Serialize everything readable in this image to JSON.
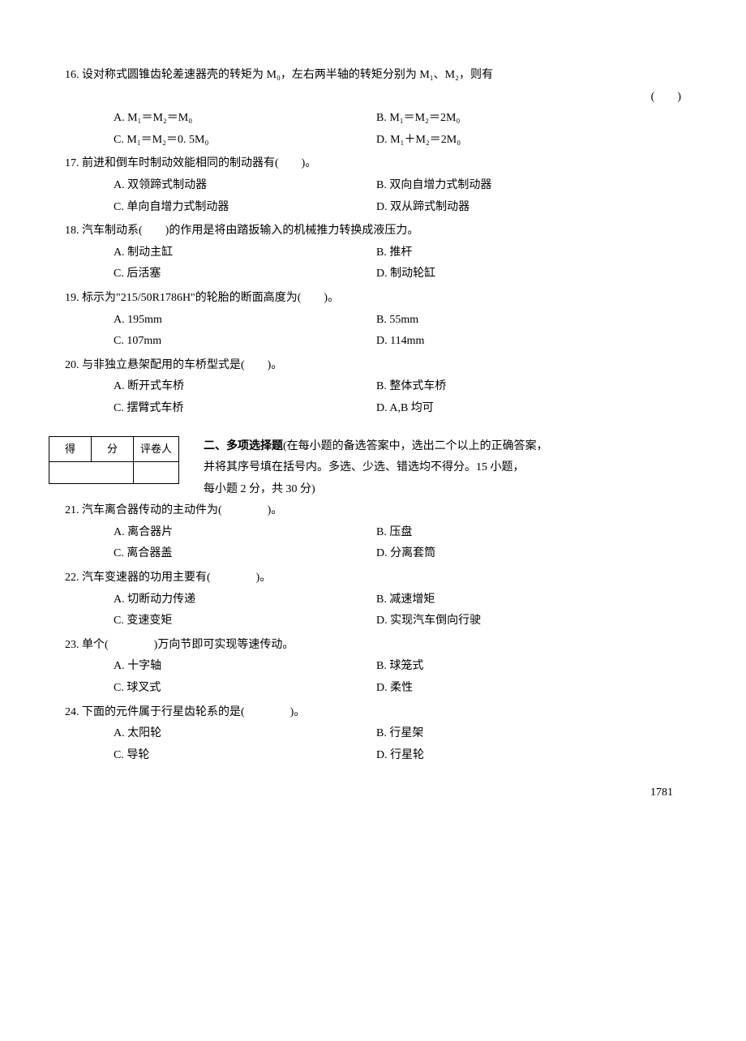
{
  "q16": {
    "num": "16.",
    "text": "设对称式圆锥齿轮差速器壳的转矩为 M₀，左右两半轴的转矩分别为 M₁、M₂，则有",
    "paren": "(　　)",
    "optA": "A.  M₁＝M₂＝M₀",
    "optB": "B.  M₁＝M₂＝2M₀",
    "optC": "C.  M₁＝M₂＝0. 5M₀",
    "optD": "D.  M₁＋M₂＝2M₀"
  },
  "q17": {
    "num": "17.",
    "text": "前进和倒车时制动效能相同的制动器有(　　)。",
    "optA": "A. 双领蹄式制动器",
    "optB": "B. 双向自增力式制动器",
    "optC": "C. 单向自增力式制动器",
    "optD": "D. 双从蹄式制动器"
  },
  "q18": {
    "num": "18.",
    "text": "汽车制动系(　　)的作用是将由踏扳输入的机械推力转换成液压力。",
    "optA": "A. 制动主缸",
    "optB": "B. 推杆",
    "optC": "C. 后活塞",
    "optD": "D. 制动轮缸"
  },
  "q19": {
    "num": "19.",
    "text": "标示为\"215/50R1786H\"的轮胎的断面高度为(　　)。",
    "optA": "A. 195mm",
    "optB": "B. 55mm",
    "optC": "C. 107mm",
    "optD": "D. 114mm"
  },
  "q20": {
    "num": "20.",
    "text": "与非独立悬架配用的车桥型式是(　　)。",
    "optA": "A. 断开式车桥",
    "optB": "B. 整体式车桥",
    "optC": "C. 摆臂式车桥",
    "optD": "D. A,B 均可"
  },
  "scoreTable": {
    "h1": "得",
    "h2": "分",
    "h3": "评卷人"
  },
  "section2": {
    "title": "二、多项选择题",
    "desc1": "(在每小题的备选答案中，选出二个以上的正确答案，",
    "desc2": "并将其序号填在括号内。多选、少选、错选均不得分。15 小题，",
    "desc3": "每小题 2 分，共 30 分)"
  },
  "q21": {
    "num": "21.",
    "text": "汽车离合器传动的主动件为(　　　　)。",
    "optA": "A. 离合器片",
    "optB": "B. 压盘",
    "optC": "C. 离合器盖",
    "optD": "D. 分离套筒"
  },
  "q22": {
    "num": "22.",
    "text": "汽车变速器的功用主要有(　　　　)。",
    "optA": "A. 切断动力传递",
    "optB": "B. 减速增矩",
    "optC": "C. 变速变矩",
    "optD": "D. 实现汽车倒向行驶"
  },
  "q23": {
    "num": "23.",
    "text": "单个(　　　　)万向节即可实现等速传动。",
    "optA": "A. 十字轴",
    "optB": "B. 球笼式",
    "optC": "C. 球叉式",
    "optD": "D. 柔性"
  },
  "q24": {
    "num": "24.",
    "text": "下面的元件属于行星齿轮系的是(　　　　)。",
    "optA": "A. 太阳轮",
    "optB": "B. 行星架",
    "optC": "C. 导轮",
    "optD": "D. 行星轮"
  },
  "pageNum": "1781"
}
